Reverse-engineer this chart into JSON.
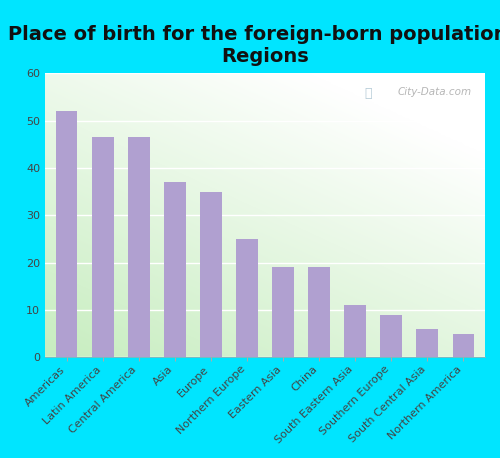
{
  "title": "Place of birth for the foreign-born population -\nRegions",
  "categories": [
    "Americas",
    "Latin America",
    "Central America",
    "Asia",
    "Europe",
    "Northern Europe",
    "Eastern Asia",
    "China",
    "South Eastern Asia",
    "Southern Europe",
    "South Central Asia",
    "Northern America"
  ],
  "values": [
    52,
    46.5,
    46.5,
    37,
    35,
    25,
    19,
    19,
    11,
    9,
    6,
    5
  ],
  "bar_color": "#b0a0d0",
  "background_outer": "#00e5ff",
  "ylim": [
    0,
    60
  ],
  "yticks": [
    0,
    10,
    20,
    30,
    40,
    50,
    60
  ],
  "title_fontsize": 14,
  "tick_fontsize": 8,
  "watermark": "City-Data.com",
  "grid_color": "#cccccc",
  "gradient_colors": [
    "#c8e6c0",
    "#ffffff"
  ],
  "bar_width": 0.6
}
